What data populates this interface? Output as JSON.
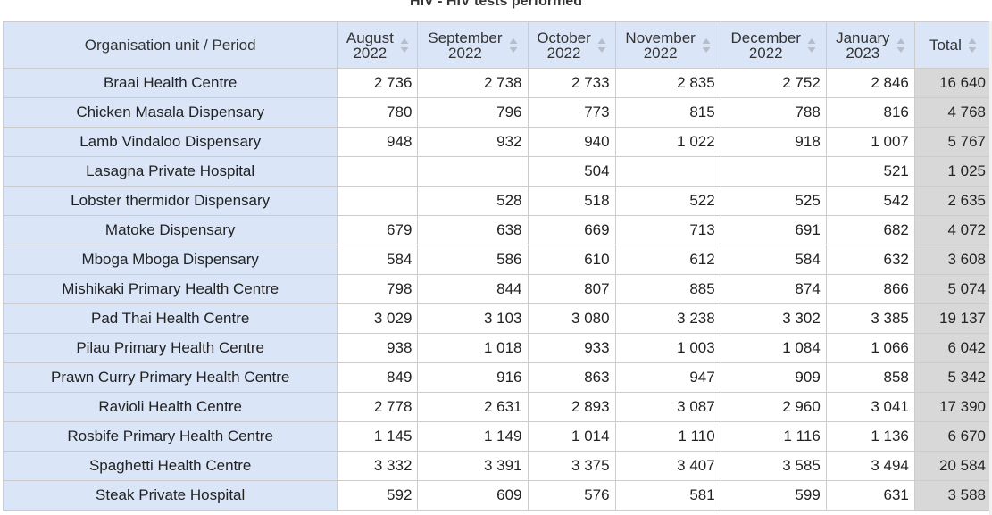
{
  "table": {
    "title": "HIV - HIV tests performed",
    "corner_header": "Organisation unit / Period",
    "columns": [
      {
        "line1": "August",
        "line2": "2022"
      },
      {
        "line1": "September",
        "line2": "2022"
      },
      {
        "line1": "October",
        "line2": "2022"
      },
      {
        "line1": "November",
        "line2": "2022"
      },
      {
        "line1": "December",
        "line2": "2022"
      },
      {
        "line1": "January",
        "line2": "2023"
      }
    ],
    "total_header": "Total",
    "rows": [
      {
        "label": "Braai Health Centre",
        "values": [
          "2 736",
          "2 738",
          "2 733",
          "2 835",
          "2 752",
          "2 846"
        ],
        "total": "16 640"
      },
      {
        "label": "Chicken Masala Dispensary",
        "values": [
          "780",
          "796",
          "773",
          "815",
          "788",
          "816"
        ],
        "total": "4 768"
      },
      {
        "label": "Lamb Vindaloo Dispensary",
        "values": [
          "948",
          "932",
          "940",
          "1 022",
          "918",
          "1 007"
        ],
        "total": "5 767"
      },
      {
        "label": "Lasagna Private Hospital",
        "values": [
          "",
          "",
          "504",
          "",
          "",
          "521"
        ],
        "total": "1 025"
      },
      {
        "label": "Lobster thermidor Dispensary",
        "values": [
          "",
          "528",
          "518",
          "522",
          "525",
          "542"
        ],
        "total": "2 635"
      },
      {
        "label": "Matoke Dispensary",
        "values": [
          "679",
          "638",
          "669",
          "713",
          "691",
          "682"
        ],
        "total": "4 072"
      },
      {
        "label": "Mboga Mboga Dispensary",
        "values": [
          "584",
          "586",
          "610",
          "612",
          "584",
          "632"
        ],
        "total": "3 608"
      },
      {
        "label": "Mishikaki Primary Health Centre",
        "values": [
          "798",
          "844",
          "807",
          "885",
          "874",
          "866"
        ],
        "total": "5 074"
      },
      {
        "label": "Pad Thai Health Centre",
        "values": [
          "3 029",
          "3 103",
          "3 080",
          "3 238",
          "3 302",
          "3 385"
        ],
        "total": "19 137"
      },
      {
        "label": "Pilau Primary Health Centre",
        "values": [
          "938",
          "1 018",
          "933",
          "1 003",
          "1 084",
          "1 066"
        ],
        "total": "6 042"
      },
      {
        "label": "Prawn Curry Primary Health Centre",
        "values": [
          "849",
          "916",
          "863",
          "947",
          "909",
          "858"
        ],
        "total": "5 342"
      },
      {
        "label": "Ravioli Health Centre",
        "values": [
          "2 778",
          "2 631",
          "2 893",
          "3 087",
          "2 960",
          "3 041"
        ],
        "total": "17 390"
      },
      {
        "label": "Rosbife Primary Health Centre",
        "values": [
          "1 145",
          "1 149",
          "1 014",
          "1 110",
          "1 116",
          "1 136"
        ],
        "total": "6 670"
      },
      {
        "label": "Spaghetti Health Centre",
        "values": [
          "3 332",
          "3 391",
          "3 375",
          "3 407",
          "3 585",
          "3 494"
        ],
        "total": "20 584"
      },
      {
        "label": "Steak Private Hospital",
        "values": [
          "592",
          "609",
          "576",
          "581",
          "599",
          "631"
        ],
        "total": "3 588"
      }
    ]
  },
  "colors": {
    "header_bg": "#dae6f8",
    "row_label_bg": "#dae6f8",
    "total_bg": "#d8d8d8",
    "border": "#cccccc",
    "sort_icon": "#b8bec8"
  }
}
